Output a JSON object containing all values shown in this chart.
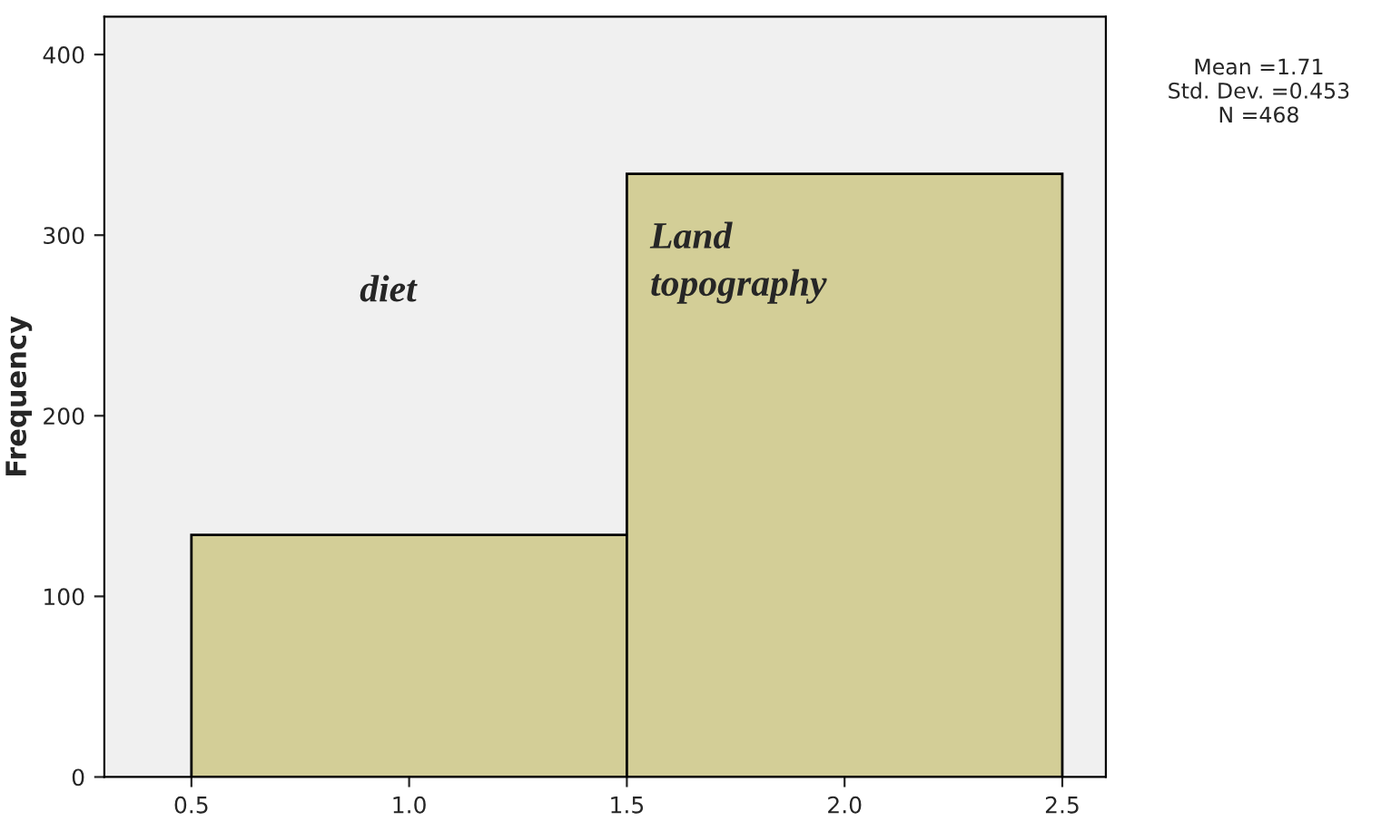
{
  "chart_data": {
    "type": "histogram",
    "ylabel": "Frequency",
    "bins": [
      0.5,
      1.5,
      2.5
    ],
    "values": [
      134,
      334
    ],
    "color": "#d3ce97",
    "xlim": [
      0.3,
      2.6
    ],
    "ylim": [
      0,
      421
    ],
    "xticks": [
      0.5,
      {
        "value": 1.0,
        "label": "1.0"
      },
      1.5,
      {
        "value": 2.0,
        "label": "2.0"
      },
      2.5
    ],
    "yticks": [
      0,
      100,
      200,
      300,
      400
    ],
    "grid": false,
    "annotations": [
      "diet",
      "Land\ntopography",
      "Mean =1.71\nStd. Dev. =0.453\nN =468"
    ]
  }
}
